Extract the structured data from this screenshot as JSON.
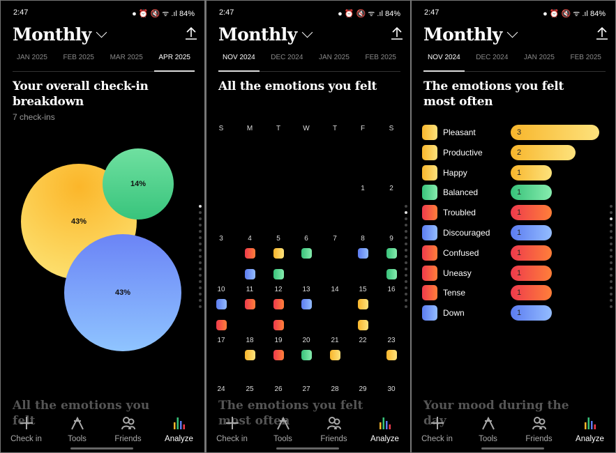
{
  "status": {
    "time": "2:47",
    "battery": "84%"
  },
  "colors": {
    "yellow": "linear-gradient(90deg,#f8b62c,#fde27c)",
    "green": "linear-gradient(90deg,#38c27a,#86ecae)",
    "red": "linear-gradient(90deg,#ee3a4c,#ff7f3a)",
    "blue": "linear-gradient(90deg,#5c7cf0,#93bcff)"
  },
  "panels": [
    {
      "title": "Monthly",
      "tabs": [
        "JAN 2025",
        "FEB 2025",
        "MAR 2025",
        "APR 2025"
      ],
      "active_tab": 3,
      "heading": "Your overall check-in breakdown",
      "subtitle": "7 check-ins",
      "bubbles": [
        {
          "label": "43%",
          "color": "yellow"
        },
        {
          "label": "14%",
          "color": "green"
        },
        {
          "label": "43%",
          "color": "blue"
        }
      ],
      "next_section": "All the emotions you felt"
    },
    {
      "title": "Monthly",
      "tabs": [
        "NOV 2024",
        "DEC 2024",
        "JAN 2025",
        "FEB 2025"
      ],
      "active_tab": 0,
      "heading": "All the emotions you felt",
      "weekdays": [
        "S",
        "M",
        "T",
        "W",
        "T",
        "F",
        "S"
      ],
      "weeks": [
        [
          null,
          null,
          null,
          null,
          null,
          {
            "d": "1",
            "e": []
          },
          {
            "d": "2",
            "e": []
          }
        ],
        [
          {
            "d": "3",
            "e": []
          },
          {
            "d": "4",
            "e": [
              "red",
              "blue"
            ]
          },
          {
            "d": "5",
            "e": [
              "yellow",
              "green"
            ]
          },
          {
            "d": "6",
            "e": [
              "green"
            ]
          },
          {
            "d": "7",
            "e": []
          },
          {
            "d": "8",
            "e": [
              "blue"
            ]
          },
          {
            "d": "9",
            "e": [
              "green",
              "green"
            ]
          }
        ],
        [
          {
            "d": "10",
            "e": [
              "blue",
              "red"
            ]
          },
          {
            "d": "11",
            "e": [
              "red"
            ]
          },
          {
            "d": "12",
            "e": [
              "red",
              "red"
            ]
          },
          {
            "d": "13",
            "e": [
              "blue"
            ]
          },
          {
            "d": "14",
            "e": []
          },
          {
            "d": "15",
            "e": [
              "yellow",
              "yellow"
            ]
          },
          {
            "d": "16",
            "e": []
          }
        ],
        [
          {
            "d": "17",
            "e": []
          },
          {
            "d": "18",
            "e": [
              "yellow"
            ]
          },
          {
            "d": "19",
            "e": [
              "red"
            ]
          },
          {
            "d": "20",
            "e": [
              "green"
            ]
          },
          {
            "d": "21",
            "e": [
              "yellow"
            ]
          },
          {
            "d": "22",
            "e": []
          },
          {
            "d": "23",
            "e": [
              "yellow"
            ]
          }
        ],
        [
          {
            "d": "24",
            "e": []
          },
          {
            "d": "25",
            "e": []
          },
          {
            "d": "26",
            "e": []
          },
          {
            "d": "27",
            "e": []
          },
          {
            "d": "28",
            "e": []
          },
          {
            "d": "29",
            "e": []
          },
          {
            "d": "30",
            "e": []
          }
        ]
      ],
      "next_section": "The emotions you felt most often"
    },
    {
      "title": "Monthly",
      "tabs": [
        "NOV 2024",
        "DEC 2024",
        "JAN 2025",
        "FEB 2025"
      ],
      "active_tab": 0,
      "heading": "The emotions you felt most often",
      "emotions": [
        {
          "name": "Pleasant",
          "count": 3,
          "color": "yellow"
        },
        {
          "name": "Productive",
          "count": 2,
          "color": "yellow"
        },
        {
          "name": "Happy",
          "count": 1,
          "color": "yellow"
        },
        {
          "name": "Balanced",
          "count": 1,
          "color": "green"
        },
        {
          "name": "Troubled",
          "count": 1,
          "color": "red"
        },
        {
          "name": "Discouraged",
          "count": 1,
          "color": "blue"
        },
        {
          "name": "Confused",
          "count": 1,
          "color": "red"
        },
        {
          "name": "Uneasy",
          "count": 1,
          "color": "red"
        },
        {
          "name": "Tense",
          "count": 1,
          "color": "red"
        },
        {
          "name": "Down",
          "count": 1,
          "color": "blue"
        }
      ],
      "next_section": "Your mood during the day"
    }
  ],
  "nav": [
    {
      "label": "Check in",
      "icon": "plus-icon"
    },
    {
      "label": "Tools",
      "icon": "tools-icon"
    },
    {
      "label": "Friends",
      "icon": "friends-icon"
    },
    {
      "label": "Analyze",
      "icon": "analyze-icon"
    }
  ],
  "nav_active": 3
}
